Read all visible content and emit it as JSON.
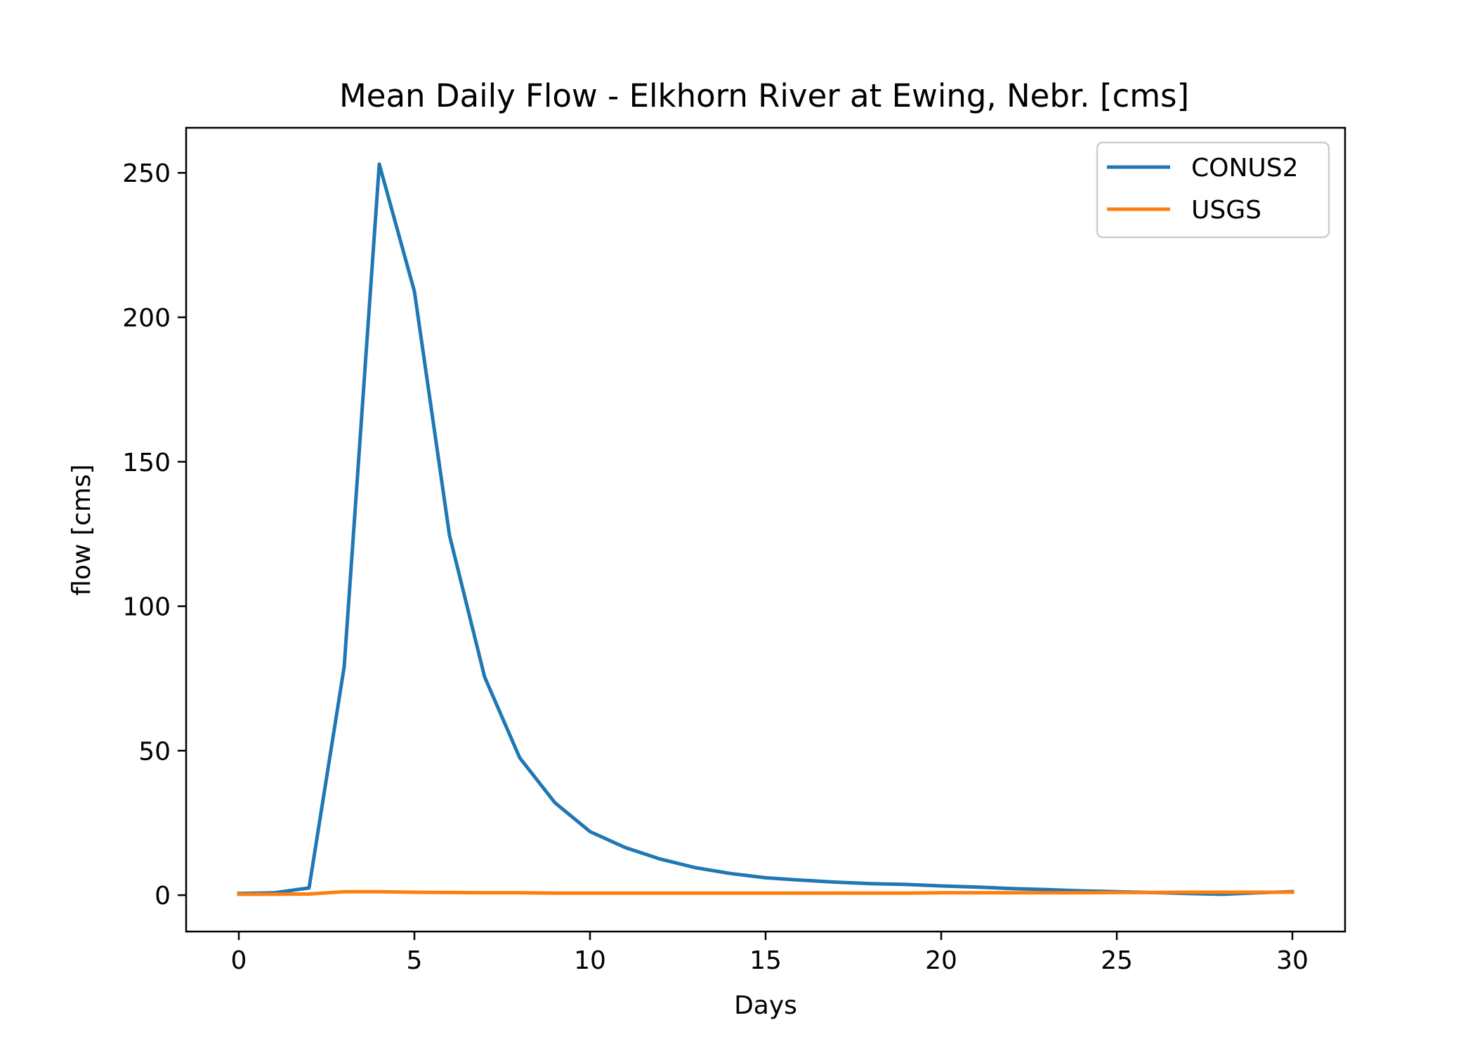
{
  "chart_data": {
    "type": "line",
    "title": "Mean Daily Flow - Elkhorn River at Ewing, Nebr. [cms]",
    "xlabel": "Days",
    "ylabel": "flow [cms]",
    "xlim": [
      -1.5,
      31.5
    ],
    "ylim": [
      -12.6,
      265.6
    ],
    "xticks": [
      0,
      5,
      10,
      15,
      20,
      25,
      30
    ],
    "yticks": [
      0,
      50,
      100,
      150,
      200,
      250
    ],
    "grid": false,
    "legend": "upper right",
    "x": [
      0,
      1,
      2,
      3,
      4,
      5,
      6,
      7,
      8,
      9,
      10,
      11,
      12,
      13,
      14,
      15,
      16,
      17,
      18,
      19,
      20,
      21,
      22,
      23,
      24,
      25,
      26,
      27,
      28,
      29,
      30
    ],
    "series": [
      {
        "name": "CONUS2",
        "color": "#1f77b4",
        "values": [
          0.6,
          0.8,
          2.5,
          79,
          253,
          209,
          124.5,
          75.5,
          47.5,
          32,
          22,
          16.5,
          12.5,
          9.5,
          7.5,
          6,
          5.2,
          4.5,
          4,
          3.7,
          3.2,
          2.8,
          2.3,
          1.9,
          1.5,
          1.2,
          0.9,
          0.6,
          0.3,
          0.8,
          1.2
        ]
      },
      {
        "name": "USGS",
        "color": "#ff7f0e",
        "values": [
          0.3,
          0.3,
          0.4,
          1.2,
          1.2,
          1.0,
          0.9,
          0.8,
          0.8,
          0.7,
          0.7,
          0.7,
          0.7,
          0.7,
          0.7,
          0.7,
          0.7,
          0.7,
          0.7,
          0.7,
          0.8,
          0.8,
          0.8,
          0.8,
          0.8,
          0.9,
          0.9,
          1.0,
          1.0,
          1.0,
          1.0
        ]
      }
    ]
  }
}
